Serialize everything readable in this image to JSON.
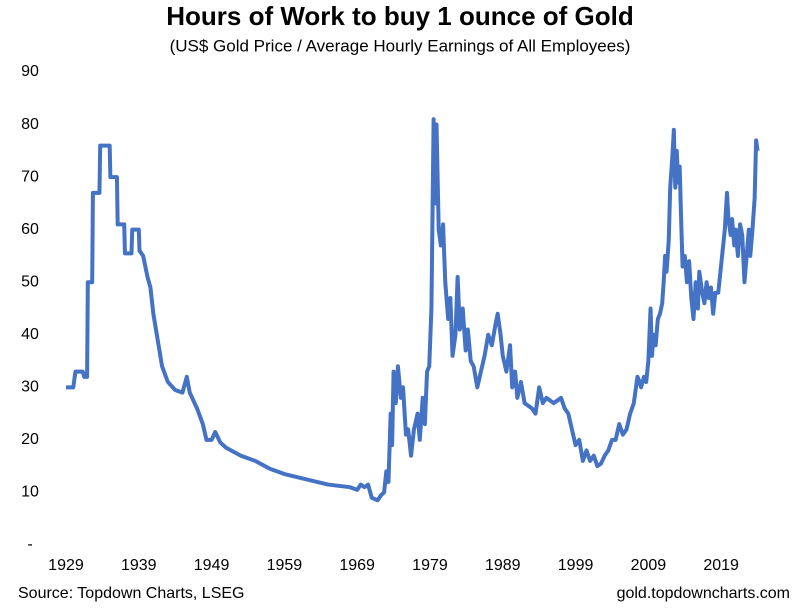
{
  "chart_data": {
    "type": "line",
    "title": "Hours of Work to buy 1 ounce of Gold",
    "subtitle": "(US$ Gold Price / Average Hourly Earnings of All Employees)",
    "source": "Source: Topdown Charts, LSEG",
    "website": "gold.topdowncharts.com",
    "color": "#4472c4",
    "grid": false,
    "xlim": [
      1928,
      2027
    ],
    "xticks": [
      1929,
      1939,
      1949,
      1959,
      1969,
      1979,
      1989,
      1999,
      2009,
      2019
    ],
    "ylim": [
      0,
      90
    ],
    "yticks": [
      {
        "value": 0,
        "label": "-"
      },
      10,
      20,
      30,
      40,
      50,
      60,
      70,
      80,
      90
    ],
    "x": [
      1929,
      1930,
      1930.3,
      1931.3,
      1931.5,
      1931.9,
      1932,
      1932.6,
      1932.7,
      1933.6,
      1933.7,
      1935,
      1935.1,
      1936,
      1936.1,
      1937,
      1937.1,
      1938,
      1938.1,
      1939,
      1939.1,
      1939.6,
      1940.2,
      1940.6,
      1941,
      1941.6,
      1942.2,
      1943,
      1944,
      1945,
      1945.6,
      1946,
      1947,
      1947.8,
      1948.3,
      1949,
      1949.5,
      1950.2,
      1951,
      1953,
      1955,
      1957,
      1959,
      1962,
      1965,
      1968,
      1969,
      1969.5,
      1970,
      1970.5,
      1971,
      1971.8,
      1972.3,
      1972.7,
      1973,
      1973.3,
      1973.6,
      1973.8,
      1974,
      1974.3,
      1974.6,
      1975,
      1975.3,
      1975.7,
      1976,
      1976.4,
      1976.8,
      1977.3,
      1977.6,
      1978,
      1978.3,
      1978.6,
      1978.9,
      1979.2,
      1979.5,
      1979.7,
      1979.9,
      1980.2,
      1980.5,
      1980.8,
      1981.1,
      1981.5,
      1981.8,
      1982.1,
      1982.5,
      1982.8,
      1983.1,
      1983.5,
      1983.9,
      1984.2,
      1984.6,
      1985,
      1985.5,
      1986,
      1986.5,
      1987,
      1987.5,
      1988,
      1988.3,
      1988.7,
      1989,
      1989.5,
      1990,
      1990.3,
      1990.7,
      1991,
      1991.5,
      1992,
      1993,
      1993.5,
      1994,
      1994.5,
      1995,
      1996,
      1997,
      1997.5,
      1998,
      1998.5,
      1999,
      1999.5,
      2000,
      2000.5,
      2001,
      2001.5,
      2002,
      2002.5,
      2003,
      2003.5,
      2004,
      2004.5,
      2005,
      2005.5,
      2006,
      2006.5,
      2007,
      2007.5,
      2007.8,
      2008,
      2008.4,
      2008.7,
      2009,
      2009.3,
      2009.5,
      2009.7,
      2010,
      2010.3,
      2010.6,
      2010.9,
      2011.1,
      2011.3,
      2011.5,
      2011.8,
      2012,
      2012.3,
      2012.5,
      2012.7,
      2012.9,
      2013.1,
      2013.3,
      2013.5,
      2013.7,
      2014,
      2014.3,
      2014.6,
      2014.9,
      2015.2,
      2015.5,
      2015.8,
      2016,
      2016.4,
      2016.7,
      2017,
      2017.3,
      2017.6,
      2017.9,
      2018.2,
      2018.6,
      2018.9,
      2019.2,
      2019.5,
      2019.8,
      2020,
      2020.3,
      2020.5,
      2020.8,
      2021,
      2021.3,
      2021.6,
      2021.9,
      2022.2,
      2022.5,
      2022.8,
      2023,
      2023.3,
      2023.6,
      2023.8,
      2024
    ],
    "values": [
      30,
      30,
      33,
      33,
      32,
      32,
      50,
      50,
      67,
      67,
      76,
      76,
      70,
      70,
      61,
      61,
      55.5,
      55.5,
      60,
      60,
      56,
      55,
      51,
      49,
      44,
      39,
      34,
      31,
      29.5,
      29,
      32,
      29,
      26,
      23,
      20,
      20,
      21.5,
      19.5,
      18.5,
      17,
      16,
      14.5,
      13.5,
      12.5,
      11.5,
      11,
      10.5,
      11.5,
      11,
      11.5,
      9,
      8.5,
      9.5,
      10,
      14,
      12,
      25,
      19,
      33,
      27,
      34,
      28,
      30,
      21,
      22,
      17,
      22,
      25,
      20,
      28,
      23,
      33,
      34,
      45,
      81,
      65,
      80,
      60,
      57,
      61,
      50,
      43,
      47,
      36,
      40,
      51,
      41,
      45,
      37,
      41,
      35,
      34,
      30,
      33,
      36,
      40,
      38,
      42,
      44,
      40,
      36,
      33,
      38,
      30,
      33,
      28,
      31,
      27,
      26,
      25,
      30,
      27,
      28,
      27,
      28,
      26,
      25,
      22,
      19,
      20,
      16,
      18,
      16,
      17,
      15,
      15.5,
      17,
      18,
      20,
      20,
      23,
      21,
      22,
      25,
      27,
      32,
      31,
      30,
      32,
      31,
      35,
      45,
      36,
      40,
      38,
      43,
      44,
      46,
      50,
      55,
      52,
      58,
      68,
      74,
      79,
      68,
      75,
      69,
      72,
      62,
      53,
      55,
      50,
      54,
      47,
      43,
      50,
      45,
      52,
      48,
      46,
      50,
      47,
      49,
      44,
      48,
      48,
      52,
      56,
      60,
      67,
      62,
      59,
      62,
      57,
      60,
      55,
      61,
      59,
      50,
      55,
      60,
      55,
      60,
      66,
      77,
      75
    ]
  }
}
